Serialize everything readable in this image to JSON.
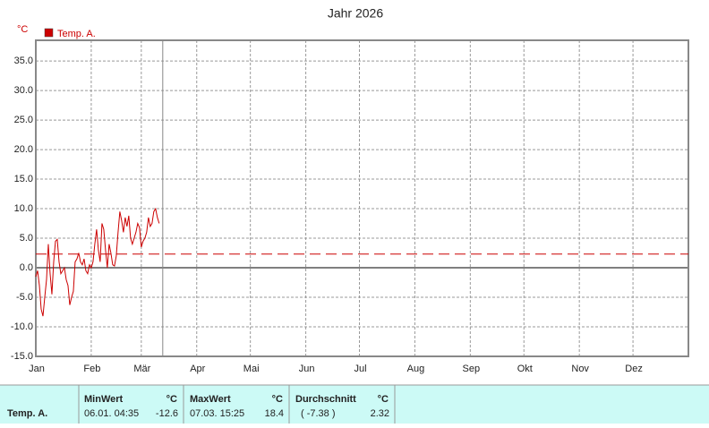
{
  "chart_data": {
    "type": "line",
    "title": "Jahr 2026",
    "y_unit": "°C",
    "x": [
      0,
      1,
      2,
      3,
      4,
      5,
      6,
      7,
      8,
      9,
      10,
      11,
      12,
      13,
      14,
      15,
      16,
      17,
      18,
      19,
      20,
      21,
      22,
      23,
      24,
      25,
      26,
      27,
      28,
      29,
      30,
      31,
      32,
      33,
      34,
      35,
      36,
      37,
      38,
      39,
      40,
      41,
      42,
      43,
      44,
      45,
      46,
      47,
      48,
      49,
      50,
      51,
      52,
      53,
      54,
      55,
      56,
      57,
      58,
      59,
      60,
      61,
      62,
      63,
      64,
      65,
      66,
      67,
      68,
      69
    ],
    "series": [
      {
        "name": "Temp. A.",
        "color": "#cc0000",
        "values": [
          -1.5,
          -0.5,
          -3,
          -7,
          -8.2,
          -5,
          -2,
          4,
          -1,
          -4.5,
          1,
          4.5,
          4.8,
          1,
          -1,
          -0.5,
          0,
          -2,
          -3,
          -6.3,
          -5,
          -4,
          1,
          1.5,
          2.5,
          1,
          0.5,
          1.5,
          -0.5,
          -1,
          0.5,
          0,
          1,
          4,
          6.5,
          3,
          1,
          7.5,
          6.5,
          3,
          0,
          4,
          2.5,
          0.5,
          0.3,
          2,
          6,
          9.5,
          8,
          6,
          8.5,
          7,
          8.8,
          5,
          4,
          5,
          6,
          7.5,
          6.8,
          3.5,
          4.5,
          5,
          6,
          8.5,
          7,
          7.5,
          9.5,
          10,
          8.5,
          7.5
        ]
      }
    ],
    "mean": 2.32,
    "cursor_x": 71,
    "xlim": [
      0,
      365
    ],
    "ylim": [
      -15,
      38.5
    ],
    "xticks": [
      {
        "value": 0,
        "label": "Jan"
      },
      {
        "value": 31,
        "label": "Feb"
      },
      {
        "value": 59,
        "label": "Mär"
      },
      {
        "value": 90,
        "label": "Apr"
      },
      {
        "value": 120,
        "label": "Mai"
      },
      {
        "value": 151,
        "label": "Jun"
      },
      {
        "value": 181,
        "label": "Jul"
      },
      {
        "value": 212,
        "label": "Aug"
      },
      {
        "value": 243,
        "label": "Sep"
      },
      {
        "value": 273,
        "label": "Okt"
      },
      {
        "value": 304,
        "label": "Nov"
      },
      {
        "value": 334,
        "label": "Dez"
      }
    ],
    "yticks": [
      {
        "value": -15,
        "label": "-15.0"
      },
      {
        "value": -10,
        "label": "-10.0"
      },
      {
        "value": -5,
        "label": "-5.0"
      },
      {
        "value": 0,
        "label": "0.0"
      },
      {
        "value": 5,
        "label": "5.0"
      },
      {
        "value": 10,
        "label": "10.0"
      },
      {
        "value": 15,
        "label": "15.0"
      },
      {
        "value": 20,
        "label": "20.0"
      },
      {
        "value": 25,
        "label": "25.0"
      },
      {
        "value": 30,
        "label": "30.0"
      },
      {
        "value": 35,
        "label": "35.0"
      }
    ],
    "grid": true
  },
  "table": {
    "row_label": "Temp. A.",
    "min": {
      "header": "MinWert",
      "unit": "°C",
      "time": "06.01.  04:35",
      "value": "-12.6"
    },
    "max": {
      "header": "MaxWert",
      "unit": "°C",
      "time": "07.03.  15:25",
      "value": "18.4"
    },
    "avg": {
      "header": "Durchschnitt",
      "unit": "°C",
      "extra": "( -7.38 )"
    }
  }
}
